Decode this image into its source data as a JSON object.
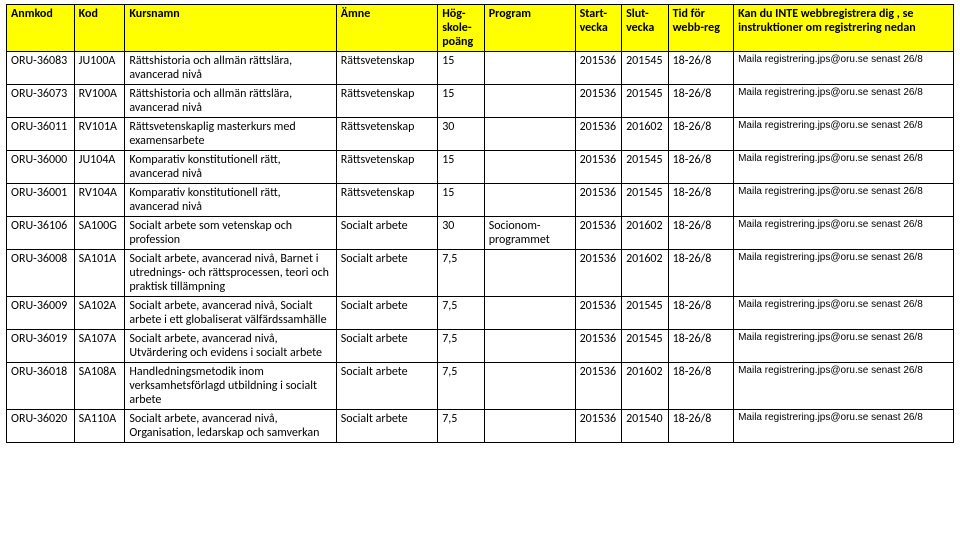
{
  "header": {
    "anmkod": "Anmkod",
    "kod": "Kod",
    "kursnamn": "Kursnamn",
    "amne": "Ämne",
    "hp": "Hög-skole-poäng",
    "program": "Program",
    "start": "Start-vecka",
    "slut": "Slut-vecka",
    "tid": "Tid för webb-reg",
    "inst": "Kan du INTE webbregistrera dig , se instruktioner om registrering nedan"
  },
  "rows": [
    {
      "anmkod": "ORU-36083",
      "kod": "JU100A",
      "kursnamn": "Rättshistoria och allmän rättslära, avancerad nivå",
      "amne": "Rättsvetenskap",
      "hp": "15",
      "program": "",
      "start": "201536",
      "slut": "201545",
      "tid": "18-26/8",
      "inst": "Maila registrering.jps@oru.se senast 26/8"
    },
    {
      "anmkod": "ORU-36073",
      "kod": "RV100A",
      "kursnamn": "Rättshistoria och allmän rättslära, avancerad nivå",
      "amne": "Rättsvetenskap",
      "hp": "15",
      "program": "",
      "start": "201536",
      "slut": "201545",
      "tid": "18-26/8",
      "inst": "Maila registrering.jps@oru.se senast 26/8"
    },
    {
      "anmkod": "ORU-36011",
      "kod": "RV101A",
      "kursnamn": "Rättsvetenskaplig masterkurs med examensarbete",
      "amne": "Rättsvetenskap",
      "hp": "30",
      "program": "",
      "start": "201536",
      "slut": "201602",
      "tid": "18-26/8",
      "inst": "Maila registrering.jps@oru.se senast 26/8"
    },
    {
      "anmkod": "ORU-36000",
      "kod": "JU104A",
      "kursnamn": "Komparativ konstitutionell rätt, avancerad nivå",
      "amne": "Rättsvetenskap",
      "hp": "15",
      "program": "",
      "start": "201536",
      "slut": "201545",
      "tid": "18-26/8",
      "inst": "Maila registrering.jps@oru.se senast 26/8"
    },
    {
      "anmkod": "ORU-36001",
      "kod": "RV104A",
      "kursnamn": "Komparativ konstitutionell rätt, avancerad nivå",
      "amne": "Rättsvetenskap",
      "hp": "15",
      "program": "",
      "start": "201536",
      "slut": "201545",
      "tid": "18-26/8",
      "inst": "Maila registrering.jps@oru.se senast 26/8"
    },
    {
      "anmkod": "ORU-36106",
      "kod": "SA100G",
      "kursnamn": "Socialt arbete som vetenskap och profession",
      "amne": "Socialt arbete",
      "hp": "30",
      "program": "Socionom-programmet",
      "start": "201536",
      "slut": "201602",
      "tid": "18-26/8",
      "inst": "Maila registrering.jps@oru.se senast 26/8"
    },
    {
      "anmkod": "ORU-36008",
      "kod": "SA101A",
      "kursnamn": "Socialt arbete, avancerad nivå, Barnet i utrednings- och rättsprocessen, teori och praktisk tillämpning",
      "amne": "Socialt arbete",
      "hp": "7,5",
      "program": "",
      "start": "201536",
      "slut": "201602",
      "tid": "18-26/8",
      "inst": "Maila registrering.jps@oru.se senast 26/8"
    },
    {
      "anmkod": "ORU-36009",
      "kod": "SA102A",
      "kursnamn": "Socialt arbete, avancerad nivå, Socialt arbete i ett globaliserat välfärdssamhälle",
      "amne": "Socialt arbete",
      "hp": "7,5",
      "program": "",
      "start": "201536",
      "slut": "201545",
      "tid": "18-26/8",
      "inst": "Maila registrering.jps@oru.se senast 26/8"
    },
    {
      "anmkod": "ORU-36019",
      "kod": "SA107A",
      "kursnamn": "Socialt arbete, avancerad nivå, Utvärdering och evidens i socialt arbete",
      "amne": "Socialt arbete",
      "hp": "7,5",
      "program": "",
      "start": "201536",
      "slut": "201545",
      "tid": "18-26/8",
      "inst": "Maila registrering.jps@oru.se senast 26/8"
    },
    {
      "anmkod": "ORU-36018",
      "kod": "SA108A",
      "kursnamn": "Handledningsmetodik inom verksamhetsförlagd utbildning i socialt arbete",
      "amne": "Socialt arbete",
      "hp": "7,5",
      "program": "",
      "start": "201536",
      "slut": "201602",
      "tid": "18-26/8",
      "inst": "Maila registrering.jps@oru.se senast 26/8"
    },
    {
      "anmkod": "ORU-36020",
      "kod": "SA110A",
      "kursnamn": "Socialt arbete, avancerad nivå, Organisation, ledarskap och samverkan",
      "amne": "Socialt arbete",
      "hp": "7,5",
      "program": "",
      "start": "201536",
      "slut": "201540",
      "tid": "18-26/8",
      "inst": "Maila registrering.jps@oru.se senast 26/8"
    }
  ]
}
